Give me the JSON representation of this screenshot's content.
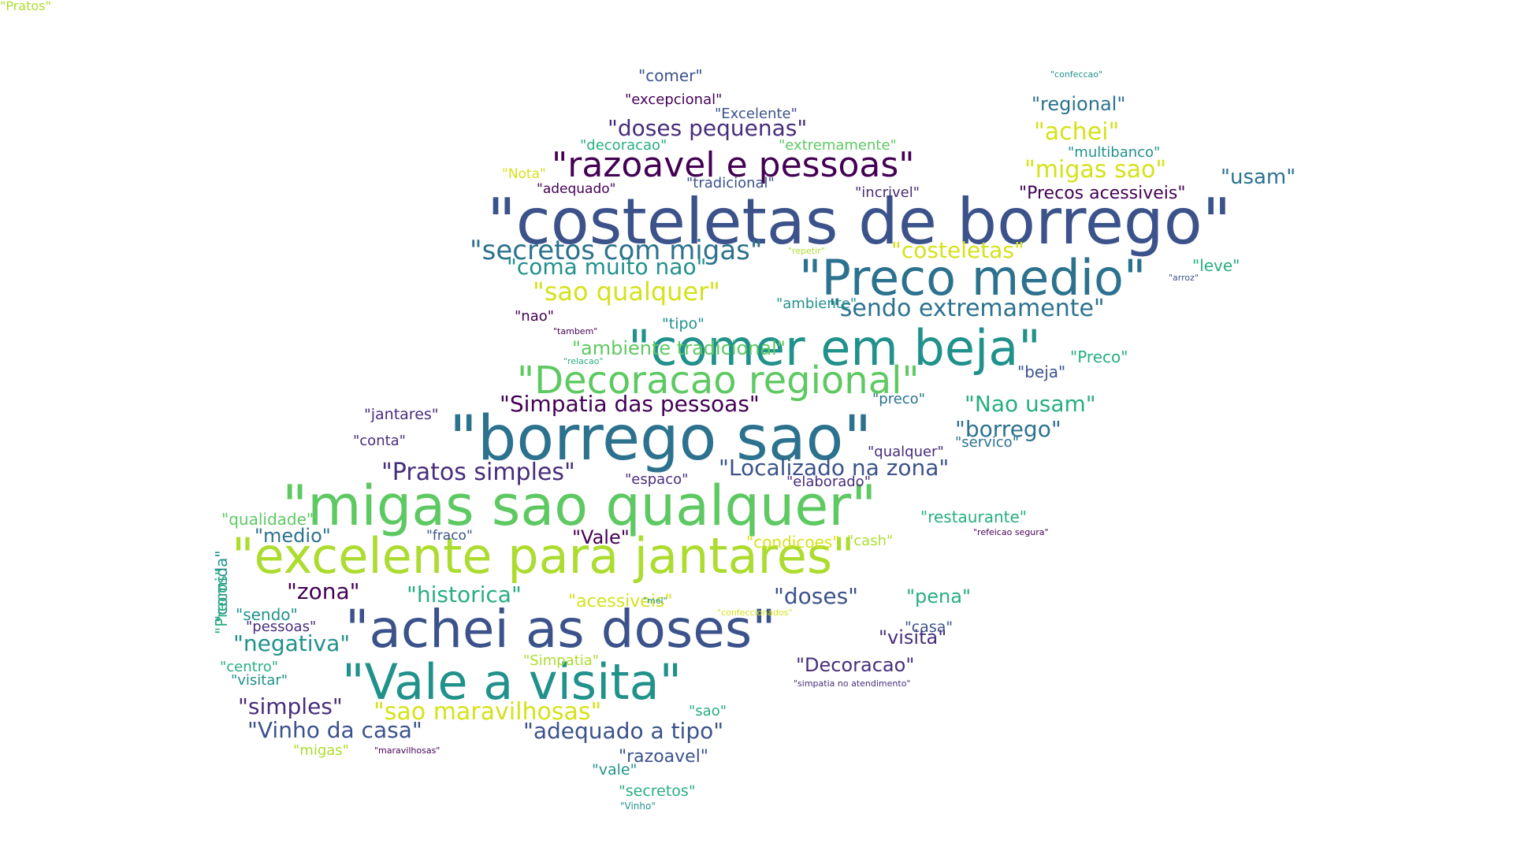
{
  "words": [
    {
      "text": "\"costeletas de borrego\"",
      "color": "c3"
    },
    {
      "text": "\"Preco medio\"",
      "color": "c4"
    },
    {
      "text": "\"comer em beja\"",
      "color": "c5"
    },
    {
      "text": "\"Decoracao regional\"",
      "color": "c7"
    },
    {
      "text": "\"borrego sao\"",
      "color": "c4"
    },
    {
      "text": "\"migas sao qualquer\"",
      "color": "c7"
    },
    {
      "text": "\"excelente para jantares\"",
      "color": "c8"
    },
    {
      "text": "\"achei as doses\"",
      "color": "c3"
    },
    {
      "text": "\"Vale a visita\"",
      "color": "c5"
    },
    {
      "text": "\"razoavel e pessoas\"",
      "color": "c1"
    },
    {
      "text": "\"secretos com migas\"",
      "color": "c4"
    },
    {
      "text": "\"sao qualquer\"",
      "color": "c9"
    },
    {
      "text": "\"sendo extremamente\"",
      "color": "c4"
    },
    {
      "text": "\"Simpatia das pessoas\"",
      "color": "c1"
    },
    {
      "text": "\"Pratos simples\"",
      "color": "c2"
    },
    {
      "text": "\"Localizado na zona\"",
      "color": "c3"
    },
    {
      "text": "\"sao maravilhosas\"",
      "color": "c9"
    },
    {
      "text": "\"adequado a tipo\"",
      "color": "c3"
    },
    {
      "text": "\"Vinho da casa\"",
      "color": "c3"
    },
    {
      "text": "\"doses pequenas\"",
      "color": "c2"
    },
    {
      "text": "\"migas sao\"",
      "color": "c9"
    },
    {
      "text": "\"costeletas\"",
      "color": "c9"
    },
    {
      "text": "\"coma muito nao\"",
      "color": "c5"
    },
    {
      "text": "\"Nao usam\"",
      "color": "c6"
    },
    {
      "text": "\"borrego\"",
      "color": "c4"
    },
    {
      "text": "\"historica\"",
      "color": "c6"
    },
    {
      "text": "\"negativa\"",
      "color": "c5"
    },
    {
      "text": "\"simples\"",
      "color": "c2"
    },
    {
      "text": "\"doses\"",
      "color": "c3"
    },
    {
      "text": "\"achei\"",
      "color": "c9"
    },
    {
      "text": "\"regional\"",
      "color": "c4"
    },
    {
      "text": "\"usam\"",
      "color": "c4"
    },
    {
      "text": "\"zona\"",
      "color": "c1"
    },
    {
      "text": "\"Decoracao\"",
      "color": "c2"
    },
    {
      "text": "\"visita\"",
      "color": "c2"
    },
    {
      "text": "\"Precos acessiveis\"",
      "color": "c1"
    },
    {
      "text": "\"Vale\"",
      "color": "c1"
    },
    {
      "text": "\"pena\"",
      "color": "c6"
    },
    {
      "text": "\"medio\"",
      "color": "c4"
    },
    {
      "text": "\"comer\"",
      "color": "c3"
    },
    {
      "text": "\"excepcional\"",
      "color": "c1"
    },
    {
      "text": "\"Excelente\"",
      "color": "c3"
    },
    {
      "text": "\"decoracao\"",
      "color": "c6"
    },
    {
      "text": "\"extremamente\"",
      "color": "c7"
    },
    {
      "text": "\"multibanco\"",
      "color": "c5"
    },
    {
      "text": "\"Nota\"",
      "color": "c9"
    },
    {
      "text": "\"adequado\"",
      "color": "c1"
    },
    {
      "text": "\"tradicional\"",
      "color": "c3"
    },
    {
      "text": "\"incrivel\"",
      "color": "c2"
    },
    {
      "text": "\"leve\"",
      "color": "c6"
    },
    {
      "text": "\"ambiente\"",
      "color": "c5"
    },
    {
      "text": "\"nao\"",
      "color": "c1"
    },
    {
      "text": "\"tipo\"",
      "color": "c5"
    },
    {
      "text": "\"ambiente tradicional\"",
      "color": "c7"
    },
    {
      "text": "\"Preco\"",
      "color": "c6"
    },
    {
      "text": "\"beja\"",
      "color": "c3"
    },
    {
      "text": "\"jantares\"",
      "color": "c2"
    },
    {
      "text": "\"preco\"",
      "color": "c4"
    },
    {
      "text": "\"conta\"",
      "color": "c2"
    },
    {
      "text": "\"qualquer\"",
      "color": "c2"
    },
    {
      "text": "\"servico\"",
      "color": "c4"
    },
    {
      "text": "\"espaco\"",
      "color": "c2"
    },
    {
      "text": "\"elaborado\"",
      "color": "c2"
    },
    {
      "text": "\"restaurante\"",
      "color": "c6"
    },
    {
      "text": "\"qualidade\"",
      "color": "c7"
    },
    {
      "text": "\"fraco\"",
      "color": "c3"
    },
    {
      "text": "\"condicoes\"",
      "color": "c9"
    },
    {
      "text": "\"cash\"",
      "color": "c8"
    },
    {
      "text": "\"acessiveis\"",
      "color": "c9"
    },
    {
      "text": "\"casa\"",
      "color": "c3"
    },
    {
      "text": "\"sendo\"",
      "color": "c5"
    },
    {
      "text": "\"pessoas\"",
      "color": "c2"
    },
    {
      "text": "\"centro\"",
      "color": "c6"
    },
    {
      "text": "\"visitar\"",
      "color": "c5"
    },
    {
      "text": "\"Simpatia\"",
      "color": "c8"
    },
    {
      "text": "\"sao\"",
      "color": "c6"
    },
    {
      "text": "\"razoavel\"",
      "color": "c3"
    },
    {
      "text": "\"vale\"",
      "color": "c5"
    },
    {
      "text": "\"secretos\"",
      "color": "c6"
    },
    {
      "text": "\"migas\"",
      "color": "c8"
    },
    {
      "text": "\"comida\"",
      "color": "c5"
    },
    {
      "text": "\"Precos\"",
      "color": "c6"
    },
    {
      "text": "\"confeccao\"",
      "color": "c5"
    },
    {
      "text": "\"repetir\"",
      "color": "c8"
    },
    {
      "text": "\"arroz\"",
      "color": "c3"
    },
    {
      "text": "\"tambem\"",
      "color": "c1"
    },
    {
      "text": "\"relacao\"",
      "color": "c6"
    },
    {
      "text": "\"refeicao segura\"",
      "color": "c1"
    },
    {
      "text": "\"mel\"",
      "color": "c5"
    },
    {
      "text": "\"confeccionados\"",
      "color": "c9"
    },
    {
      "text": "\"simpatia no atendimento\"",
      "color": "c2"
    },
    {
      "text": "\"maravilhosas\"",
      "color": "c1"
    },
    {
      "text": "\"Vinho\"",
      "color": "c5"
    },
    {
      "text": "\"Pratos\"",
      "color": "c8"
    }
  ]
}
